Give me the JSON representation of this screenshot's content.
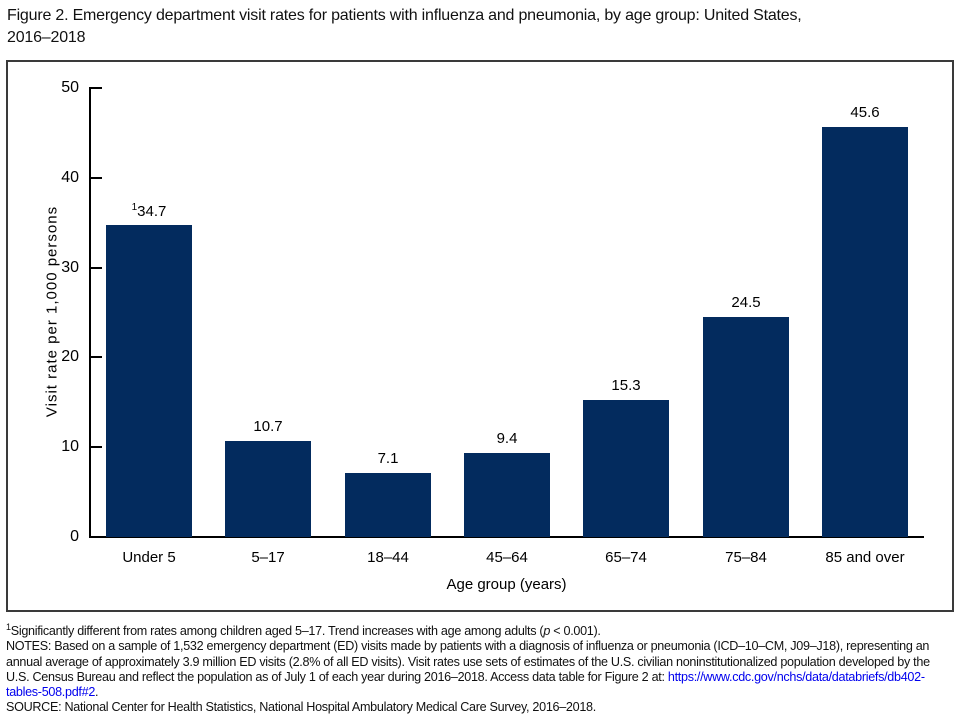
{
  "title": {
    "line1": "Figure 2. Emergency department visit rates for patients with influenza and pneumonia, by age group: United States,",
    "line2": "2016–2018"
  },
  "chart_data": {
    "type": "bar",
    "categories": [
      "Under 5",
      "5–17",
      "18–44",
      "45–64",
      "65–74",
      "75–84",
      "85 and over"
    ],
    "values": [
      34.7,
      10.7,
      7.1,
      9.4,
      15.3,
      24.5,
      45.6
    ],
    "value_labels": [
      "34.7",
      "10.7",
      "7.1",
      "9.4",
      "15.3",
      "24.5",
      "45.6"
    ],
    "value_label_sups": [
      "1",
      "",
      "",
      "",
      "",
      "",
      ""
    ],
    "title": "Figure 2. Emergency department visit rates for patients with influenza and pneumonia, by age group: United States, 2016–2018",
    "xlabel": "Age group (years)",
    "ylabel": "Visit rate per 1,000 persons",
    "ylim": [
      0,
      50
    ],
    "yticks": [
      0,
      10,
      20,
      30,
      40,
      50
    ],
    "grid": false,
    "legend": "none",
    "bar_color": "#032b5e",
    "axis_color": "#000000"
  },
  "footnotes": {
    "sig_sup": "1",
    "sig_before_italic": "Significantly different from rates among children aged 5–17. Trend increases with age among adults (",
    "sig_italic": "p",
    "sig_after_italic": " < 0.001).",
    "notes": "NOTES: Based on a sample of 1,532 emergency department (ED) visits made by patients with a diagnosis of influenza or pneumonia (ICD–10–CM, J09–J18), representing an annual average of approximately 3.9 million ED visits (2.8% of all ED visits). Visit rates use sets of estimates of the U.S. civilian noninstitutionalized population developed by the U.S. Census Bureau and reflect the population as of July 1 of each year during 2016–2018. Access data table for Figure 2 at: ",
    "link": "https://www.cdc.gov/nchs/data/databriefs/db402-tables-508.pdf#2",
    "after_link": ".",
    "source": "SOURCE: National Center for Health Statistics, National Hospital Ambulatory Medical Care Survey, 2016–2018.",
    "link_color": "#0000ee"
  }
}
